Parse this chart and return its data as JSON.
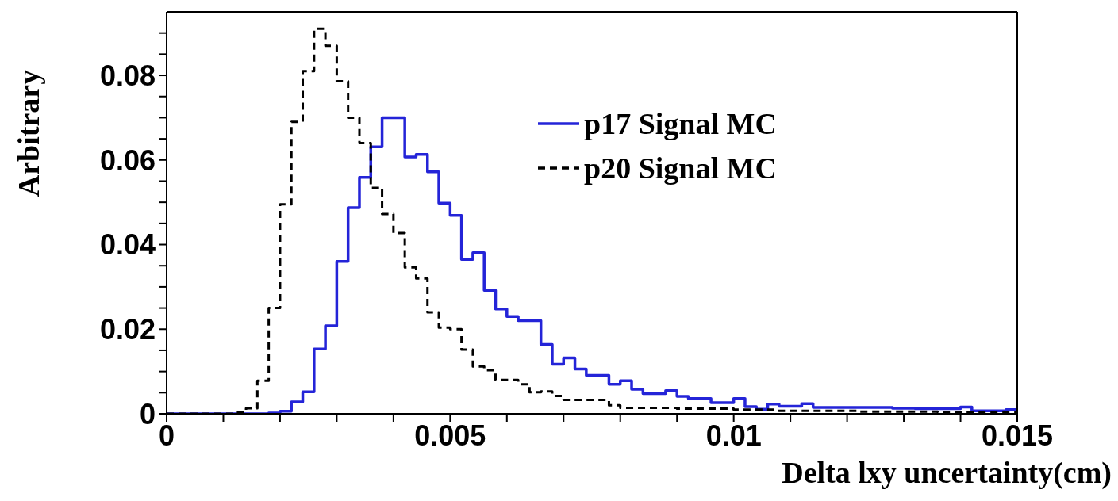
{
  "chart_data": {
    "type": "histogram",
    "xlabel": "Delta lxy uncertainty(cm)",
    "ylabel": "Arbitrary",
    "bins": [
      0,
      0.0002,
      0.0004,
      0.0006,
      0.0008,
      0.001,
      0.0012,
      0.0014,
      0.0016,
      0.0018,
      0.002,
      0.0022,
      0.0024,
      0.0026,
      0.0028,
      0.003,
      0.0032,
      0.0034,
      0.0036,
      0.0038,
      0.004,
      0.0042,
      0.0044,
      0.0046,
      0.0048,
      0.005,
      0.0052,
      0.0054,
      0.0056,
      0.0058,
      0.006,
      0.0062,
      0.0064,
      0.0066,
      0.0068,
      0.007,
      0.0072,
      0.0074,
      0.0076,
      0.0078,
      0.008,
      0.0082,
      0.0084,
      0.0086,
      0.0088,
      0.009,
      0.0092,
      0.0094,
      0.0096,
      0.0098,
      0.01,
      0.0102,
      0.0104,
      0.0106,
      0.0108,
      0.011,
      0.0112,
      0.0114,
      0.0116,
      0.0118,
      0.012,
      0.0122,
      0.0124,
      0.0126,
      0.0128,
      0.013,
      0.0132,
      0.0134,
      0.0136,
      0.0138,
      0.014,
      0.0142,
      0.0144,
      0.0146,
      0.0148,
      0.015
    ],
    "series": [
      {
        "name": "p17 Signal MC",
        "color": "#2424d8",
        "line_style": "solid",
        "values": [
          0,
          0,
          0,
          0,
          0,
          0,
          0,
          0,
          0,
          0.0002,
          0.0006,
          0.0028,
          0.0052,
          0.0153,
          0.0208,
          0.036,
          0.0487,
          0.0559,
          0.0631,
          0.07,
          0.07,
          0.0607,
          0.0613,
          0.0572,
          0.0498,
          0.0469,
          0.0365,
          0.0381,
          0.0292,
          0.0248,
          0.023,
          0.022,
          0.022,
          0.0164,
          0.0117,
          0.0132,
          0.0106,
          0.0091,
          0.0091,
          0.007,
          0.0078,
          0.0058,
          0.0048,
          0.0048,
          0.0055,
          0.0041,
          0.0036,
          0.0036,
          0.0026,
          0.0026,
          0.0036,
          0.0017,
          0.0011,
          0.0023,
          0.0018,
          0.0018,
          0.0024,
          0.0015,
          0.0015,
          0.0015,
          0.0015,
          0.0015,
          0.0015,
          0.0015,
          0.0013,
          0.0013,
          0.0012,
          0.0012,
          0.0012,
          0.0012,
          0.0016,
          0.0007,
          0.0007,
          0.0007,
          0.001
        ]
      },
      {
        "name": "p20 Signal MC",
        "color": "#000000",
        "line_style": "dashed",
        "values": [
          0,
          0,
          0,
          0,
          0,
          0,
          0.0003,
          0.0013,
          0.0078,
          0.025,
          0.0495,
          0.069,
          0.081,
          0.091,
          0.087,
          0.0786,
          0.07,
          0.064,
          0.0534,
          0.0472,
          0.0427,
          0.0346,
          0.032,
          0.024,
          0.0204,
          0.02,
          0.0152,
          0.0112,
          0.0103,
          0.008,
          0.008,
          0.007,
          0.0051,
          0.0053,
          0.0042,
          0.0033,
          0.0033,
          0.0033,
          0.0033,
          0.002,
          0.0014,
          0.0014,
          0.0014,
          0.0014,
          0.0014,
          0.0012,
          0.0012,
          0.0012,
          0.0012,
          0.0012,
          0.001,
          0.001,
          0.001,
          0.001,
          0.0007,
          0.0007,
          0.0007,
          0.0007,
          0.0007,
          0.0007,
          0.0007,
          0.0005,
          0.0005,
          0.0005,
          0.0005,
          0.0005,
          0.0005,
          0.0005,
          0.0003,
          0.0003,
          0.0003,
          0.0003,
          0.0003,
          0.0003,
          0.0003
        ]
      }
    ],
    "xlim": [
      0,
      0.015
    ],
    "ylim": [
      0,
      0.095
    ],
    "xticks": [
      0,
      {
        "value": 0.001,
        "label": null
      },
      {
        "value": 0.002,
        "label": null
      },
      {
        "value": 0.003,
        "label": null
      },
      {
        "value": 0.004,
        "label": null
      },
      0.005,
      {
        "value": 0.006,
        "label": null
      },
      {
        "value": 0.007,
        "label": null
      },
      {
        "value": 0.008,
        "label": null
      },
      {
        "value": 0.009,
        "label": null
      },
      0.01,
      {
        "value": 0.011,
        "label": null
      },
      {
        "value": 0.012,
        "label": null
      },
      {
        "value": 0.013,
        "label": null
      },
      {
        "value": 0.014,
        "label": null
      },
      0.015
    ],
    "yticks": [
      0,
      {
        "value": 0.005,
        "label": null
      },
      {
        "value": 0.01,
        "label": null
      },
      {
        "value": 0.015,
        "label": null
      },
      0.02,
      {
        "value": 0.025,
        "label": null
      },
      {
        "value": 0.03,
        "label": null
      },
      {
        "value": 0.035,
        "label": null
      },
      0.04,
      {
        "value": 0.045,
        "label": null
      },
      {
        "value": 0.05,
        "label": null
      },
      {
        "value": 0.055,
        "label": null
      },
      0.06,
      {
        "value": 0.065,
        "label": null
      },
      {
        "value": 0.07,
        "label": null
      },
      {
        "value": 0.075,
        "label": null
      },
      0.08,
      {
        "value": 0.085,
        "label": null
      },
      {
        "value": 0.09,
        "label": null
      }
    ],
    "grid": false,
    "legend": "top right"
  }
}
